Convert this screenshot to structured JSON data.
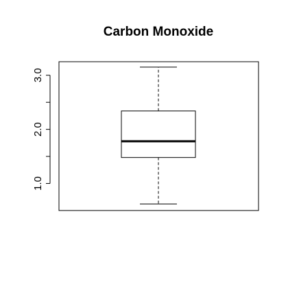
{
  "chart_data": {
    "type": "boxplot",
    "title": "Carbon Monoxide",
    "xlabel": "",
    "ylabel": "",
    "ylim": [
      0.5,
      3.25
    ],
    "yticks": [
      1.0,
      1.5,
      2.0,
      2.5,
      3.0
    ],
    "ytick_labels": [
      "1.0",
      "",
      "2.0",
      "",
      "3.0"
    ],
    "boxes": [
      {
        "min": 0.62,
        "q1": 1.48,
        "median": 1.78,
        "q3": 2.34,
        "max": 3.15
      }
    ],
    "grid": false,
    "legend": "none"
  }
}
